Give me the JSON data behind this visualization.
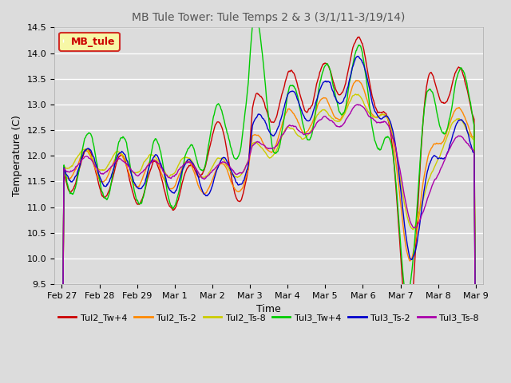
{
  "title": "MB Tule Tower: Tule Temps 2 & 3 (3/1/11-3/19/14)",
  "xlabel": "Time",
  "ylabel": "Temperature (C)",
  "ylim": [
    9.5,
    14.5
  ],
  "yticks": [
    9.5,
    10.0,
    10.5,
    11.0,
    11.5,
    12.0,
    12.5,
    13.0,
    13.5,
    14.0,
    14.5
  ],
  "background_color": "#dcdcdc",
  "plot_bg_color": "#dcdcdc",
  "legend_label": "MB_tule",
  "series": [
    {
      "name": "Tul2_Tw+4",
      "color": "#cc0000"
    },
    {
      "name": "Tul2_Ts-2",
      "color": "#ff8800"
    },
    {
      "name": "Tul2_Ts-8",
      "color": "#cccc00"
    },
    {
      "name": "Tul3_Tw+4",
      "color": "#00cc00"
    },
    {
      "name": "Tul3_Ts-2",
      "color": "#0000cc"
    },
    {
      "name": "Tul3_Ts-8",
      "color": "#aa00aa"
    }
  ],
  "xtick_labels": [
    "Feb 27",
    "Feb 28",
    "Feb 29",
    "Mar 1",
    "Mar 2",
    "Mar 3",
    "Mar 4",
    "Mar 5",
    "Mar 6",
    "Mar 7",
    "Mar 8",
    "Mar 9"
  ],
  "figwidth": 6.4,
  "figheight": 4.8,
  "dpi": 100
}
